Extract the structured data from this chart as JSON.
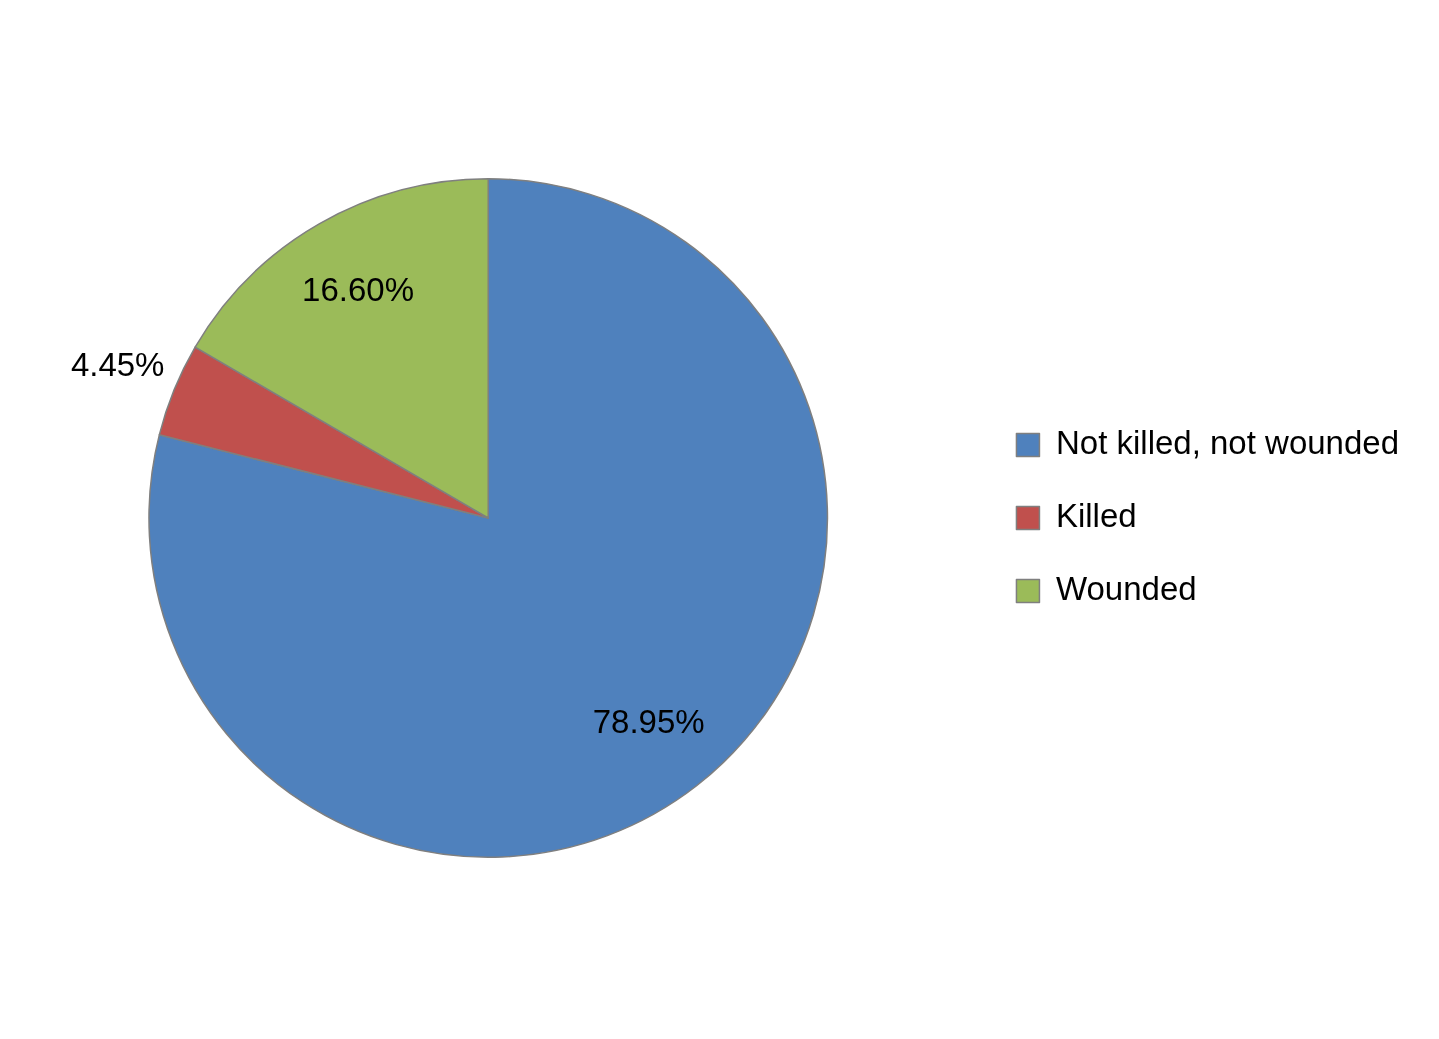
{
  "chart_data": {
    "type": "pie",
    "categories": [
      "Not killed, not wounded",
      "Killed",
      "Wounded"
    ],
    "values": [
      78.95,
      4.45,
      16.6
    ],
    "colors": [
      "#4f81bd",
      "#c0504d",
      "#9bbb59"
    ],
    "value_labels": [
      "78.95%",
      "4.45%",
      "16.60%"
    ],
    "legend": "right"
  }
}
